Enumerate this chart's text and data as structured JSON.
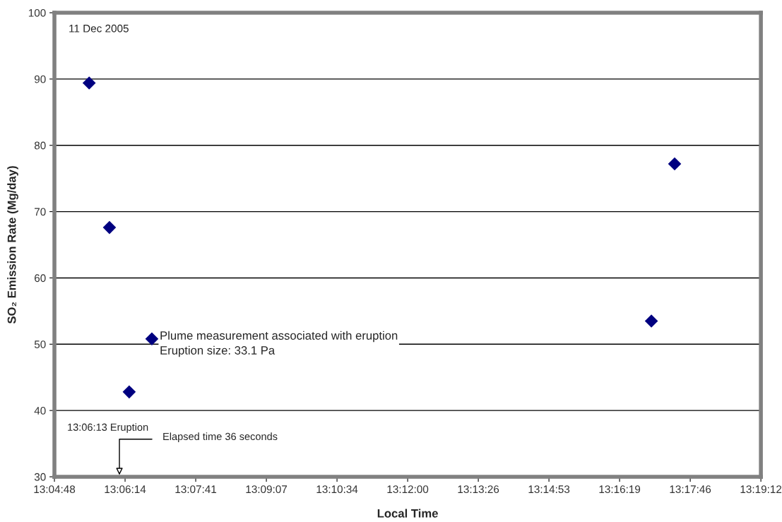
{
  "chart_data": {
    "type": "scatter",
    "xlabel": "Local Time",
    "ylabel": "SO₂ Emission Rate (Mg/day)",
    "x": [
      13.0918,
      13.0987,
      13.1054,
      13.1131,
      13.2828,
      13.2907
    ],
    "series": [
      {
        "color": "#000080",
        "values": [
          89.4,
          67.6,
          42.8,
          50.8,
          53.5,
          77.2
        ]
      }
    ],
    "marker": "diamond",
    "xlim": [
      13.08,
      13.32
    ],
    "ylim": [
      30,
      100
    ],
    "xticks": [
      {
        "value": 13.08,
        "label": "13:04:48"
      },
      {
        "value": 13.104,
        "label": "13:06:14"
      },
      {
        "value": 13.128,
        "label": "13:07:41"
      },
      {
        "value": 13.152,
        "label": "13:09:07"
      },
      {
        "value": 13.176,
        "label": "13:10:34"
      },
      {
        "value": 13.2,
        "label": "13:12:00"
      },
      {
        "value": 13.224,
        "label": "13:13:26"
      },
      {
        "value": 13.248,
        "label": "13:14:53"
      },
      {
        "value": 13.272,
        "label": "13:16:19"
      },
      {
        "value": 13.296,
        "label": "13:17:46"
      },
      {
        "value": 13.32,
        "label": "13:19:12"
      }
    ],
    "yticks": [
      30,
      40,
      50,
      60,
      70,
      80,
      90,
      100
    ],
    "grid": "y",
    "legend": false,
    "annotations": [
      "11 Dec 2005",
      {
        "text": "Plume measurement associated with eruption\nEruption size: 33.1 Pa",
        "x": 13.1131,
        "y": 50.8
      },
      "13:06:13 Eruption",
      "Elapsed time 36 seconds"
    ]
  }
}
